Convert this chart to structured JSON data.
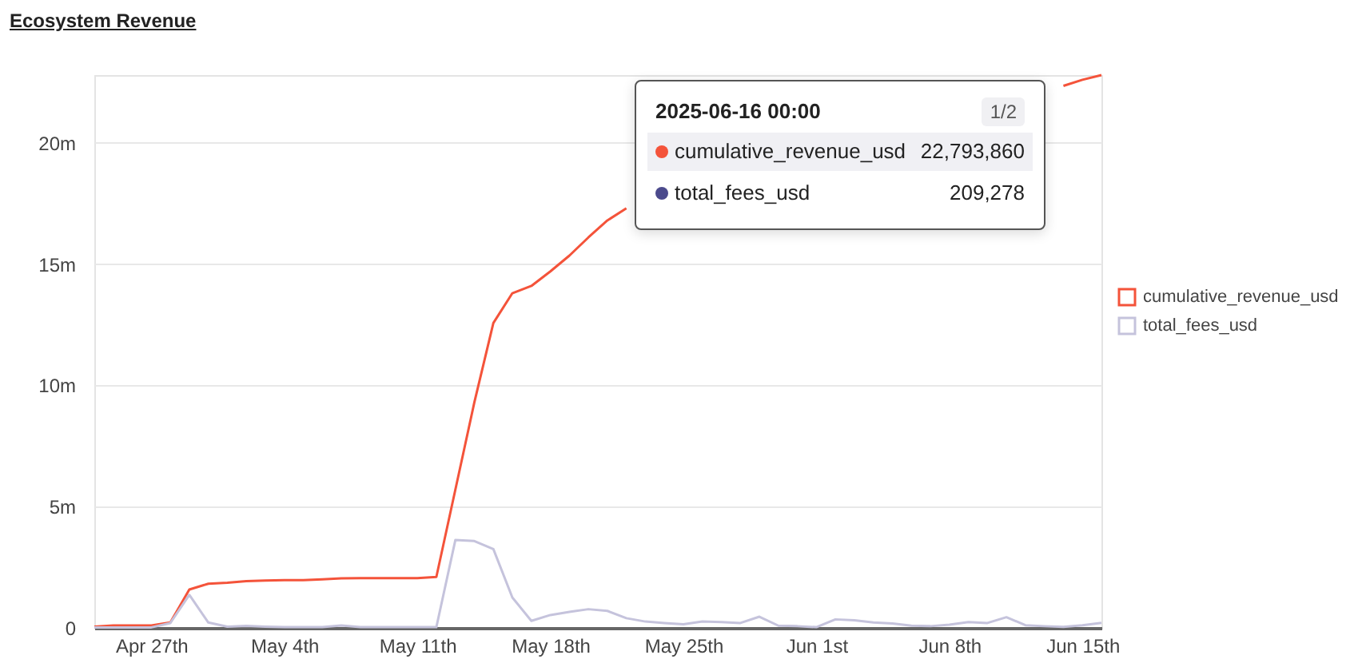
{
  "chart_data": {
    "type": "line",
    "title": "Ecosystem Revenue",
    "x": [
      "2025-04-24",
      "2025-04-25",
      "2025-04-26",
      "2025-04-27",
      "2025-04-28",
      "2025-04-29",
      "2025-04-30",
      "2025-05-01",
      "2025-05-02",
      "2025-05-03",
      "2025-05-04",
      "2025-05-05",
      "2025-05-06",
      "2025-05-07",
      "2025-05-08",
      "2025-05-09",
      "2025-05-10",
      "2025-05-11",
      "2025-05-12",
      "2025-05-13",
      "2025-05-14",
      "2025-05-15",
      "2025-05-16",
      "2025-05-17",
      "2025-05-18",
      "2025-05-19",
      "2025-05-20",
      "2025-05-21",
      "2025-05-22",
      "2025-05-23",
      "2025-05-24",
      "2025-05-25",
      "2025-05-26",
      "2025-05-27",
      "2025-05-28",
      "2025-05-29",
      "2025-05-30",
      "2025-05-31",
      "2025-06-01",
      "2025-06-02",
      "2025-06-03",
      "2025-06-04",
      "2025-06-05",
      "2025-06-06",
      "2025-06-07",
      "2025-06-08",
      "2025-06-09",
      "2025-06-10",
      "2025-06-11",
      "2025-06-12",
      "2025-06-13",
      "2025-06-14",
      "2025-06-15",
      "2025-06-16"
    ],
    "series": [
      {
        "name": "cumulative_revenue_usd",
        "color": "#f4533a",
        "values": [
          50000,
          100000,
          100000,
          100000,
          220000,
          1580000,
          1820000,
          1860000,
          1930000,
          1950000,
          1970000,
          1970000,
          2000000,
          2040000,
          2050000,
          2050000,
          2050000,
          2050000,
          2100000,
          5700000,
          9300000,
          12570000,
          13800000,
          14100000,
          14700000,
          15350000,
          16100000,
          16800000,
          17300000,
          null,
          null,
          null,
          null,
          null,
          null,
          null,
          null,
          null,
          null,
          null,
          null,
          null,
          null,
          null,
          null,
          null,
          null,
          null,
          null,
          null,
          null,
          22350000,
          22600000,
          22793860
        ]
      },
      {
        "name": "total_fees_usd",
        "color": "#c5c3dc",
        "values": [
          20000,
          20000,
          20000,
          20000,
          200000,
          1360000,
          220000,
          50000,
          80000,
          50000,
          30000,
          30000,
          30000,
          100000,
          30000,
          30000,
          30000,
          30000,
          30000,
          3620000,
          3580000,
          3250000,
          1250000,
          290000,
          530000,
          660000,
          770000,
          700000,
          400000,
          260000,
          200000,
          150000,
          260000,
          240000,
          200000,
          460000,
          90000,
          70000,
          30000,
          350000,
          310000,
          220000,
          180000,
          90000,
          70000,
          130000,
          240000,
          200000,
          440000,
          110000,
          70000,
          40000,
          110000,
          209278
        ]
      }
    ],
    "xlim": [
      "2025-04-24",
      "2025-06-16"
    ],
    "xticks": [
      {
        "value": "2025-04-27",
        "label": "Apr 27th"
      },
      {
        "value": "2025-05-04",
        "label": "May 4th"
      },
      {
        "value": "2025-05-11",
        "label": "May 11th"
      },
      {
        "value": "2025-05-18",
        "label": "May 18th"
      },
      {
        "value": "2025-05-25",
        "label": "May 25th"
      },
      {
        "value": "2025-06-01",
        "label": "Jun 1st"
      },
      {
        "value": "2025-06-08",
        "label": "Jun 8th"
      },
      {
        "value": "2025-06-15",
        "label": "Jun 15th"
      }
    ],
    "ylim": [
      0,
      22793860
    ],
    "yticks": [
      0,
      {
        "value": 5000000,
        "label": "5m"
      },
      {
        "value": 10000000,
        "label": "10m"
      },
      {
        "value": 15000000,
        "label": "15m"
      },
      {
        "value": 20000000,
        "label": "20m"
      }
    ],
    "grid": "y",
    "legend": "right",
    "marker": "none",
    "line_style": "solid",
    "annotations": [
      "2025-06-16 00:00",
      "1/2",
      "cumulative_revenue_usd",
      "22,793,860",
      "total_fees_usd",
      "209,278"
    ]
  }
}
